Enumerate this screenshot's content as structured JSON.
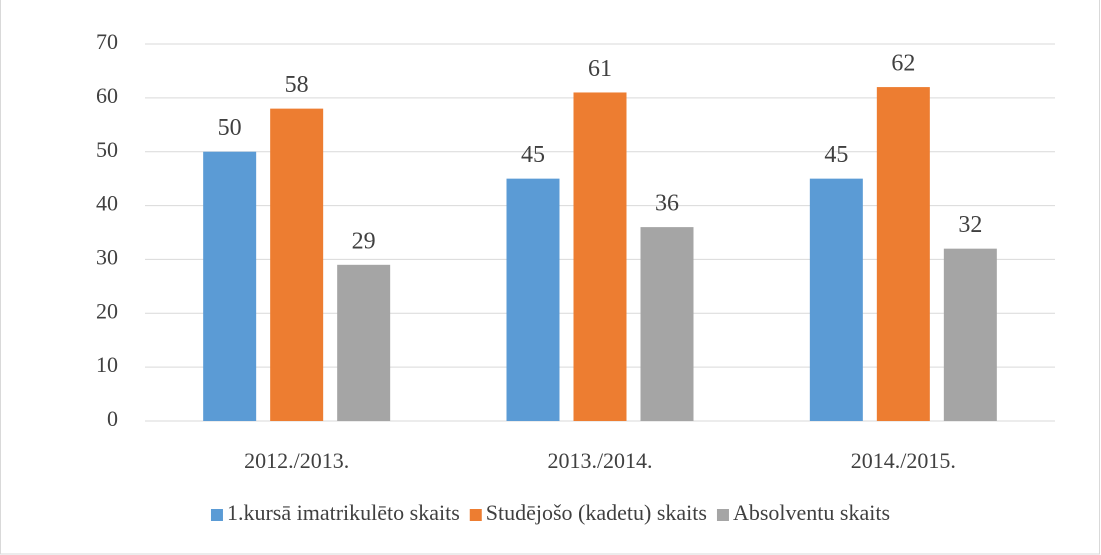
{
  "chart_data": {
    "type": "bar",
    "categories": [
      "2012./2013.",
      "2013./2014.",
      "2014./2015."
    ],
    "series": [
      {
        "name": "1.kursā imatrikulēto skaits",
        "color": "#5b9bd5",
        "values": [
          50,
          45,
          45
        ]
      },
      {
        "name": "Studējošo (kadetu) skaits",
        "color": "#ed7d31",
        "values": [
          58,
          61,
          62
        ]
      },
      {
        "name": "Absolventu skaits",
        "color": "#a5a5a5",
        "values": [
          29,
          36,
          32
        ]
      }
    ],
    "ylim": [
      0,
      70
    ],
    "yticks": [
      0,
      10,
      20,
      30,
      40,
      50,
      60,
      70
    ],
    "grid": true,
    "legend": "bottom"
  }
}
